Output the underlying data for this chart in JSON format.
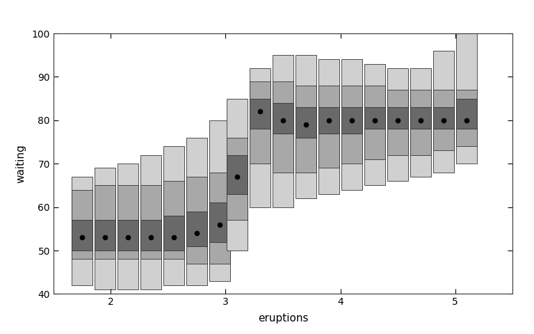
{
  "title": "",
  "xlabel": "eruptions",
  "ylabel": "waiting",
  "xlim": [
    1.5,
    5.5
  ],
  "ylim": [
    40,
    100
  ],
  "xticks": [
    2,
    3,
    4,
    5
  ],
  "yticks": [
    40,
    50,
    60,
    70,
    80,
    90,
    100
  ],
  "background_color": "#ffffff",
  "bar_width": 0.18,
  "colors": {
    "hdr99": "#d0d0d0",
    "hdr95": "#a8a8a8",
    "hdr50": "#696969",
    "mode": "#000000",
    "border": "#333333"
  },
  "columns": [
    {
      "x": 1.75,
      "mode": 53,
      "hdr50": [
        50,
        57
      ],
      "hdr95": [
        48,
        64
      ],
      "hdr99": [
        42,
        67
      ]
    },
    {
      "x": 1.95,
      "mode": 53,
      "hdr50": [
        50,
        57
      ],
      "hdr95": [
        48,
        65
      ],
      "hdr99": [
        41,
        69
      ]
    },
    {
      "x": 2.15,
      "mode": 53,
      "hdr50": [
        50,
        57
      ],
      "hdr95": [
        48,
        65
      ],
      "hdr99": [
        41,
        70
      ]
    },
    {
      "x": 2.35,
      "mode": 53,
      "hdr50": [
        50,
        57
      ],
      "hdr95": [
        48,
        65
      ],
      "hdr99": [
        41,
        72
      ]
    },
    {
      "x": 2.55,
      "mode": 53,
      "hdr50": [
        50,
        58
      ],
      "hdr95": [
        48,
        66
      ],
      "hdr99": [
        42,
        74
      ]
    },
    {
      "x": 2.75,
      "mode": 54,
      "hdr50": [
        51,
        59
      ],
      "hdr95": [
        47,
        67
      ],
      "hdr99": [
        42,
        76
      ]
    },
    {
      "x": 2.95,
      "mode": 56,
      "hdr50": [
        52,
        61
      ],
      "hdr95": [
        47,
        68
      ],
      "hdr99": [
        43,
        80
      ]
    },
    {
      "x": 3.1,
      "mode": 67,
      "hdr50": [
        63,
        72
      ],
      "hdr95": [
        57,
        76
      ],
      "hdr99": [
        50,
        85
      ]
    },
    {
      "x": 3.3,
      "mode": 82,
      "hdr50": [
        78,
        85
      ],
      "hdr95": [
        70,
        89
      ],
      "hdr99": [
        60,
        92
      ]
    },
    {
      "x": 3.5,
      "mode": 80,
      "hdr50": [
        77,
        84
      ],
      "hdr95": [
        68,
        89
      ],
      "hdr99": [
        60,
        95
      ]
    },
    {
      "x": 3.7,
      "mode": 79,
      "hdr50": [
        76,
        83
      ],
      "hdr95": [
        68,
        88
      ],
      "hdr99": [
        62,
        95
      ]
    },
    {
      "x": 3.9,
      "mode": 80,
      "hdr50": [
        77,
        83
      ],
      "hdr95": [
        69,
        88
      ],
      "hdr99": [
        63,
        94
      ]
    },
    {
      "x": 4.1,
      "mode": 80,
      "hdr50": [
        77,
        83
      ],
      "hdr95": [
        70,
        88
      ],
      "hdr99": [
        64,
        94
      ]
    },
    {
      "x": 4.3,
      "mode": 80,
      "hdr50": [
        78,
        83
      ],
      "hdr95": [
        71,
        88
      ],
      "hdr99": [
        65,
        93
      ]
    },
    {
      "x": 4.5,
      "mode": 80,
      "hdr50": [
        78,
        83
      ],
      "hdr95": [
        72,
        87
      ],
      "hdr99": [
        66,
        92
      ]
    },
    {
      "x": 4.7,
      "mode": 80,
      "hdr50": [
        78,
        83
      ],
      "hdr95": [
        72,
        87
      ],
      "hdr99": [
        67,
        92
      ]
    },
    {
      "x": 4.9,
      "mode": 80,
      "hdr50": [
        78,
        83
      ],
      "hdr95": [
        73,
        87
      ],
      "hdr99": [
        68,
        96
      ]
    },
    {
      "x": 5.1,
      "mode": 80,
      "hdr50": [
        78,
        85
      ],
      "hdr95": [
        74,
        87
      ],
      "hdr99": [
        70,
        100
      ]
    }
  ]
}
